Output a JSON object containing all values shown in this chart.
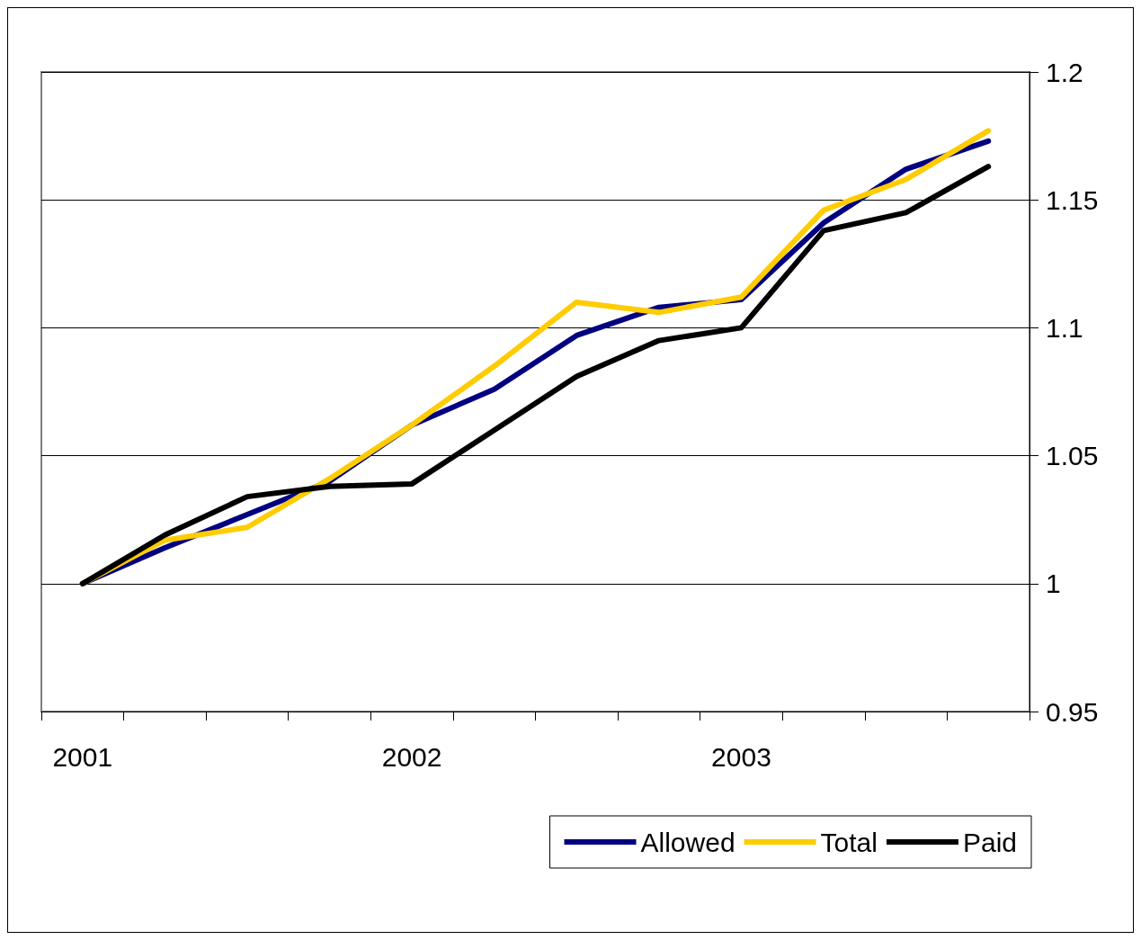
{
  "chart_data": {
    "type": "line",
    "categories": [
      "2001",
      null,
      null,
      null,
      "2002",
      null,
      null,
      null,
      "2003",
      null,
      null,
      null
    ],
    "series": [
      {
        "name": "Allowed",
        "color": "#000080",
        "values": [
          1.0,
          1.014,
          1.027,
          1.04,
          1.062,
          1.076,
          1.097,
          1.108,
          1.111,
          1.141,
          1.162,
          1.173
        ]
      },
      {
        "name": "Total",
        "color": "#ffcc00",
        "values": [
          1.0,
          1.017,
          1.022,
          1.041,
          1.062,
          1.085,
          1.11,
          1.106,
          1.112,
          1.146,
          1.158,
          1.177
        ]
      },
      {
        "name": "Paid",
        "color": "#000000",
        "values": [
          1.0,
          1.019,
          1.034,
          1.038,
          1.039,
          1.06,
          1.081,
          1.095,
          1.1,
          1.138,
          1.145,
          1.163
        ]
      }
    ],
    "ylim": [
      0.95,
      1.2
    ],
    "yticks": [
      0.95,
      1,
      1.05,
      1.1,
      1.15,
      1.2
    ],
    "grid": "y",
    "legend": "bottom",
    "marker": "none",
    "line_style": "solid"
  }
}
